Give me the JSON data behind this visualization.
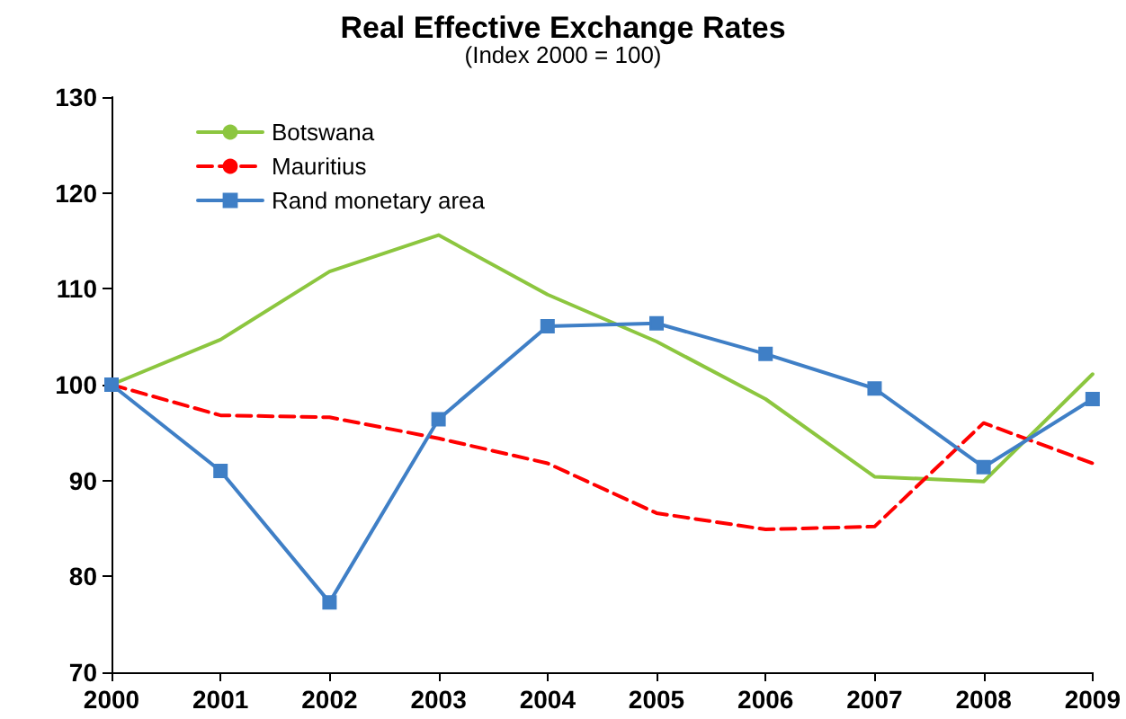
{
  "chart_data": {
    "type": "line",
    "title": "Real Effective Exchange Rates",
    "subtitle": "(Index 2000 = 100)",
    "categories": [
      "2000",
      "2001",
      "2002",
      "2003",
      "2004",
      "2005",
      "2006",
      "2007",
      "2008",
      "2009"
    ],
    "series": [
      {
        "name": "Botswana",
        "color": "#8cc63f",
        "marker": "none",
        "line_style": "solid",
        "values": [
          100,
          104.7,
          111.8,
          115.6,
          109.4,
          104.5,
          98.5,
          90.4,
          89.9,
          101.1
        ]
      },
      {
        "name": "Mauritius",
        "color": "#ff0000",
        "marker": "none",
        "line_style": "dashed",
        "values": [
          100,
          96.8,
          96.6,
          94.4,
          91.8,
          86.6,
          84.9,
          85.2,
          96,
          91.8
        ]
      },
      {
        "name": "Rand monetary area",
        "color": "#3f7fc6",
        "marker": "square",
        "line_style": "solid",
        "values": [
          100,
          91,
          77.3,
          96.4,
          106.1,
          106.4,
          103.2,
          99.6,
          91.4,
          98.5
        ]
      }
    ],
    "ylim": [
      70,
      130
    ],
    "yticks": [
      70,
      80,
      90,
      100,
      110,
      120,
      130
    ],
    "grid": false,
    "legend": "top left"
  }
}
